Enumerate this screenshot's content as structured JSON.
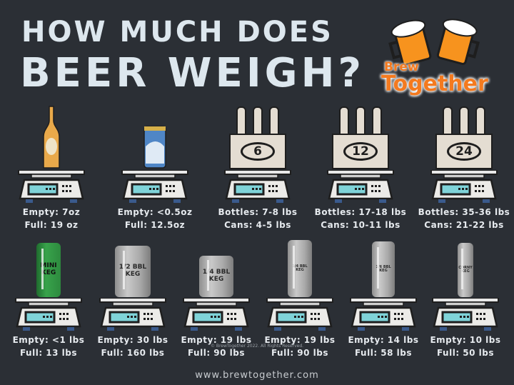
{
  "title": {
    "line1": "HOW MUCH DOES",
    "line2": "BEER WEIGH?"
  },
  "logo": {
    "brand_line1": "Brew",
    "brand_line2": "Together"
  },
  "colors": {
    "background": "#2b2f35",
    "title": "#dde7ee",
    "logo_orange": "#f47a1f",
    "scale_display": "#7fd3d8"
  },
  "top_row": [
    {
      "object": "bottle",
      "line1": "Empty: 7oz",
      "line2": "Full: 19 oz"
    },
    {
      "object": "can",
      "line1": "Empty: <0.5oz",
      "line2": "Full: 12.5oz"
    },
    {
      "object": "pack",
      "pack_label": "6",
      "line1": "Bottles: 7-8 lbs",
      "line2": "Cans: 4-5 lbs"
    },
    {
      "object": "pack",
      "pack_label": "12",
      "line1": "Bottles: 17-18 lbs",
      "line2": "Cans: 10-11 lbs"
    },
    {
      "object": "pack",
      "pack_label": "24",
      "line1": "Bottles: 35-36 lbs",
      "line2": "Cans: 21-22 lbs"
    }
  ],
  "bottom_row": [
    {
      "object": "mini-keg",
      "keg_label": "MINI KEG",
      "line1": "Empty: <1 lbs",
      "line2": "Full: 13 lbs"
    },
    {
      "object": "keg",
      "keg_label": "1/2 BBL KEG",
      "line1": "Empty: 30 lbs",
      "line2": "Full: 160 lbs"
    },
    {
      "object": "keg",
      "keg_label": "1/4 BBL KEG",
      "line1": "Empty: 19 lbs",
      "line2": "Full: 90 lbs"
    },
    {
      "object": "keg",
      "keg_label": "1/4 BBL KEG",
      "line1": "Empty: 19 lbs",
      "line2": "Full: 90 lbs"
    },
    {
      "object": "keg",
      "keg_label": "1/6 BBL KEG",
      "line1": "Empty: 14 lbs",
      "line2": "Full: 58 lbs"
    },
    {
      "object": "keg",
      "keg_label": "CORNY KEG",
      "line1": "Empty: 10 lbs",
      "line2": "Full: 50 lbs"
    }
  ],
  "footer": {
    "copyright": "© BrewTogether 2022. All Rights Reserved.",
    "website": "www.brewtogether.com"
  }
}
